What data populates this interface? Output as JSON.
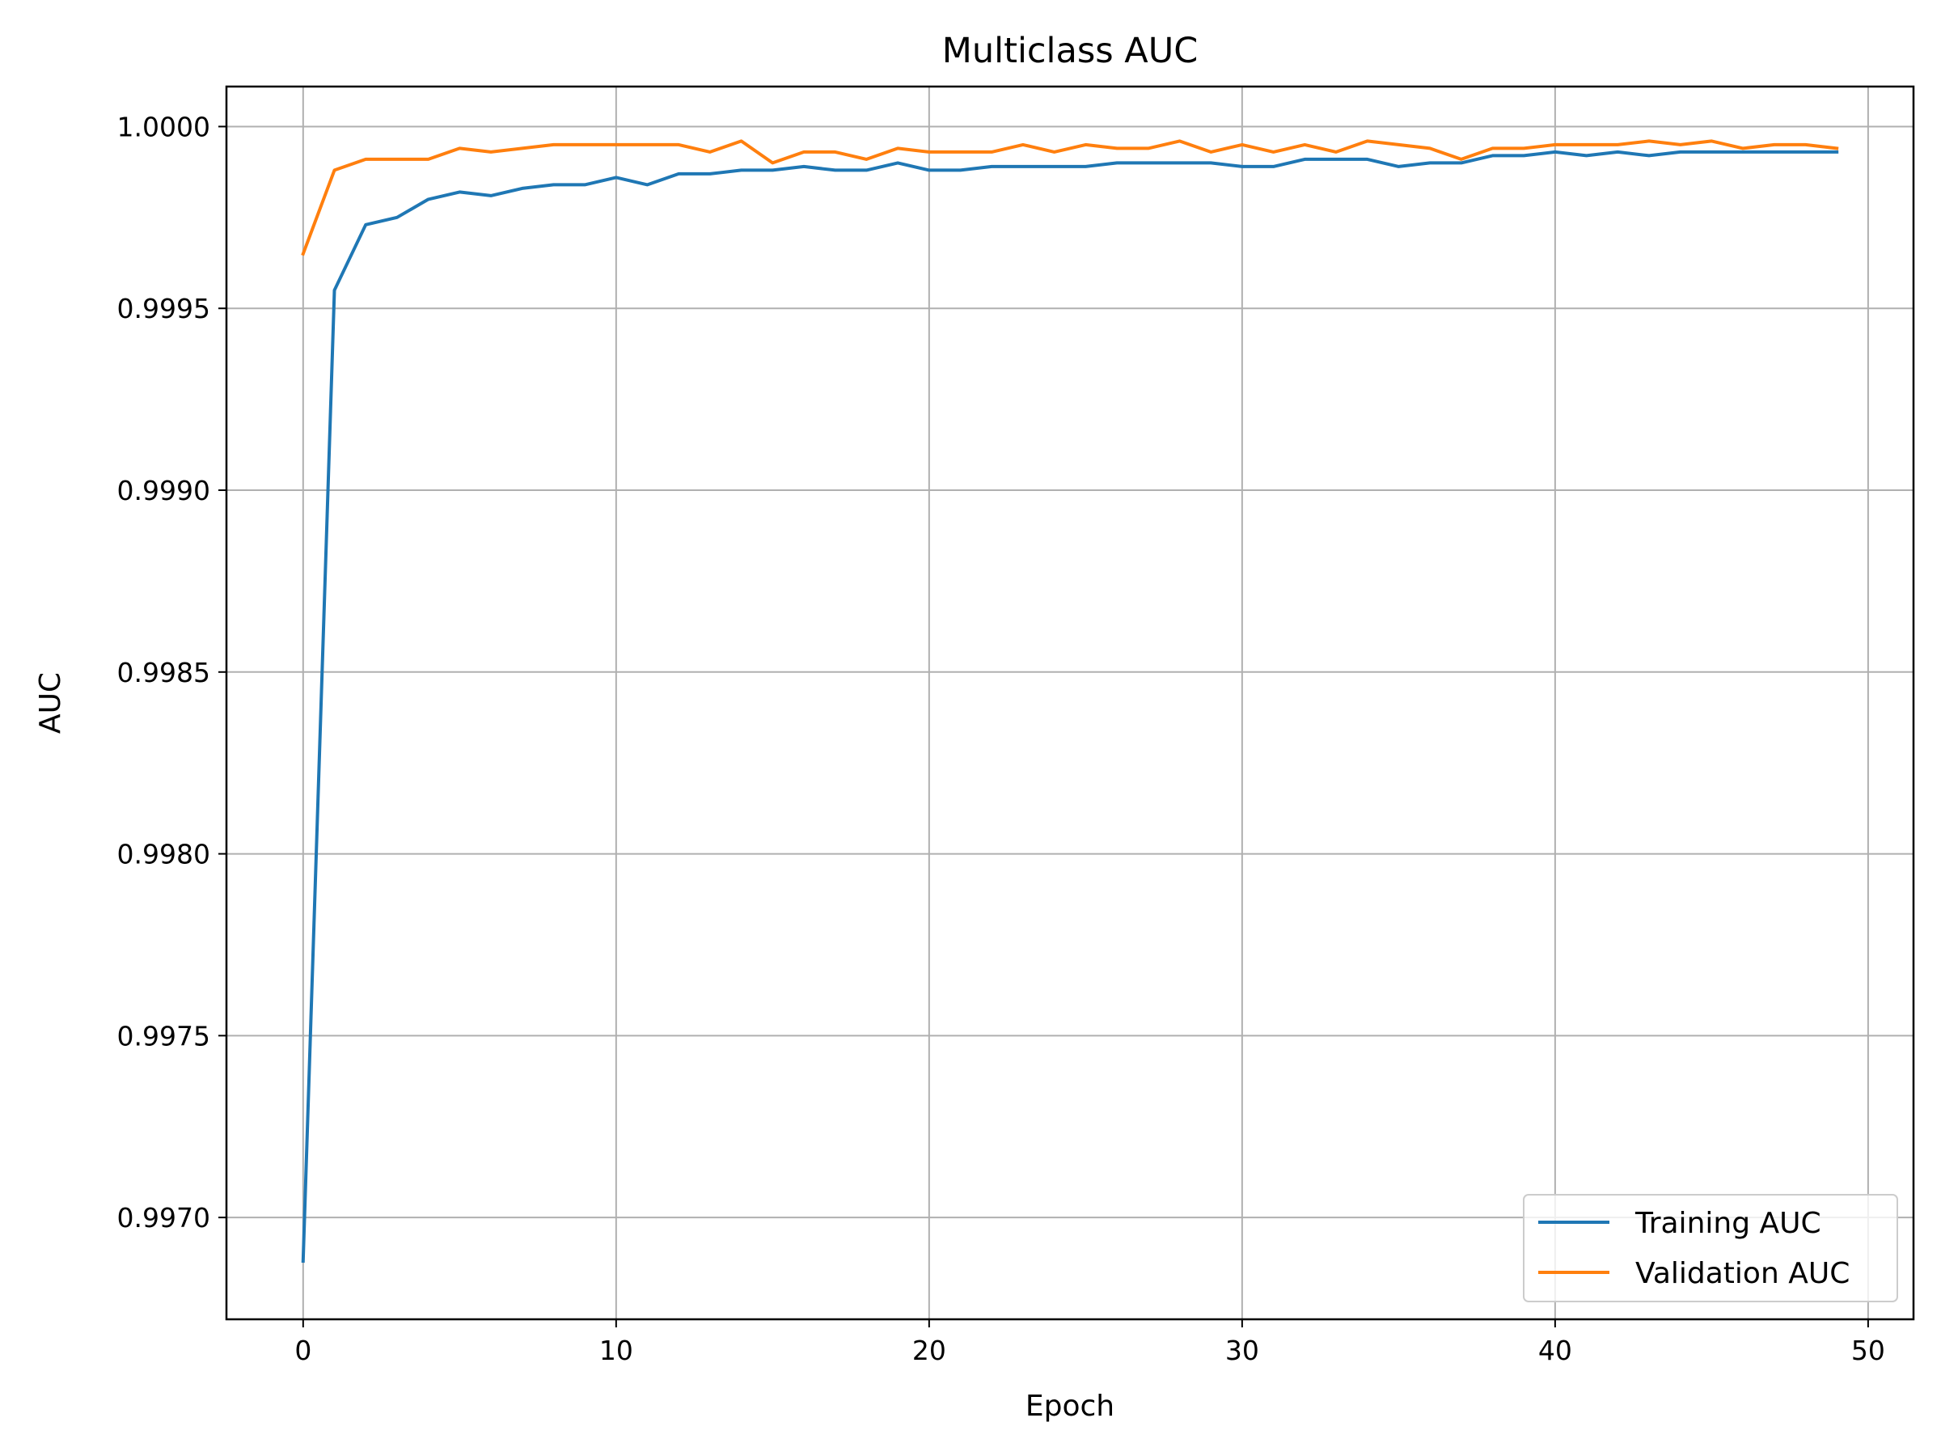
{
  "chart_data": {
    "type": "line",
    "title": "Multiclass AUC",
    "xlabel": "Epoch",
    "ylabel": "AUC",
    "xlim": [
      -2.45,
      51.45
    ],
    "ylim": [
      0.99672,
      1.00011
    ],
    "xticks": [
      0,
      10,
      20,
      30,
      40,
      50
    ],
    "xtick_labels": [
      "0",
      "10",
      "20",
      "30",
      "40",
      "50"
    ],
    "yticks": [
      0.997,
      0.9975,
      0.998,
      0.9985,
      0.999,
      0.9995,
      1.0
    ],
    "ytick_labels": [
      "0.9970",
      "0.9975",
      "0.9980",
      "0.9985",
      "0.9990",
      "0.9995",
      "1.0000"
    ],
    "grid": true,
    "legend_position": "lower-right",
    "x": [
      0,
      1,
      2,
      3,
      4,
      5,
      6,
      7,
      8,
      9,
      10,
      11,
      12,
      13,
      14,
      15,
      16,
      17,
      18,
      19,
      20,
      21,
      22,
      23,
      24,
      25,
      26,
      27,
      28,
      29,
      30,
      31,
      32,
      33,
      34,
      35,
      36,
      37,
      38,
      39,
      40,
      41,
      42,
      43,
      44,
      45,
      46,
      47,
      48,
      49
    ],
    "series": [
      {
        "name": "Training AUC",
        "color": "#1f77b4",
        "values": [
          0.99688,
          0.99955,
          0.99973,
          0.99975,
          0.9998,
          0.99982,
          0.99981,
          0.99983,
          0.99984,
          0.99984,
          0.99986,
          0.99984,
          0.99987,
          0.99987,
          0.99988,
          0.99988,
          0.99989,
          0.99988,
          0.99988,
          0.9999,
          0.99988,
          0.99988,
          0.99989,
          0.99989,
          0.99989,
          0.99989,
          0.9999,
          0.9999,
          0.9999,
          0.9999,
          0.99989,
          0.99989,
          0.99991,
          0.99991,
          0.99991,
          0.99989,
          0.9999,
          0.9999,
          0.99992,
          0.99992,
          0.99993,
          0.99992,
          0.99993,
          0.99992,
          0.99993,
          0.99993,
          0.99993,
          0.99993,
          0.99993,
          0.99993
        ]
      },
      {
        "name": "Validation AUC",
        "color": "#ff7f0e",
        "values": [
          0.99965,
          0.99988,
          0.99991,
          0.99991,
          0.99991,
          0.99994,
          0.99993,
          0.99994,
          0.99995,
          0.99995,
          0.99995,
          0.99995,
          0.99995,
          0.99993,
          0.99996,
          0.9999,
          0.99993,
          0.99993,
          0.99991,
          0.99994,
          0.99993,
          0.99993,
          0.99993,
          0.99995,
          0.99993,
          0.99995,
          0.99994,
          0.99994,
          0.99996,
          0.99993,
          0.99995,
          0.99993,
          0.99995,
          0.99993,
          0.99996,
          0.99995,
          0.99994,
          0.99991,
          0.99994,
          0.99994,
          0.99995,
          0.99995,
          0.99995,
          0.99996,
          0.99995,
          0.99996,
          0.99994,
          0.99995,
          0.99995,
          0.99994
        ]
      }
    ]
  }
}
